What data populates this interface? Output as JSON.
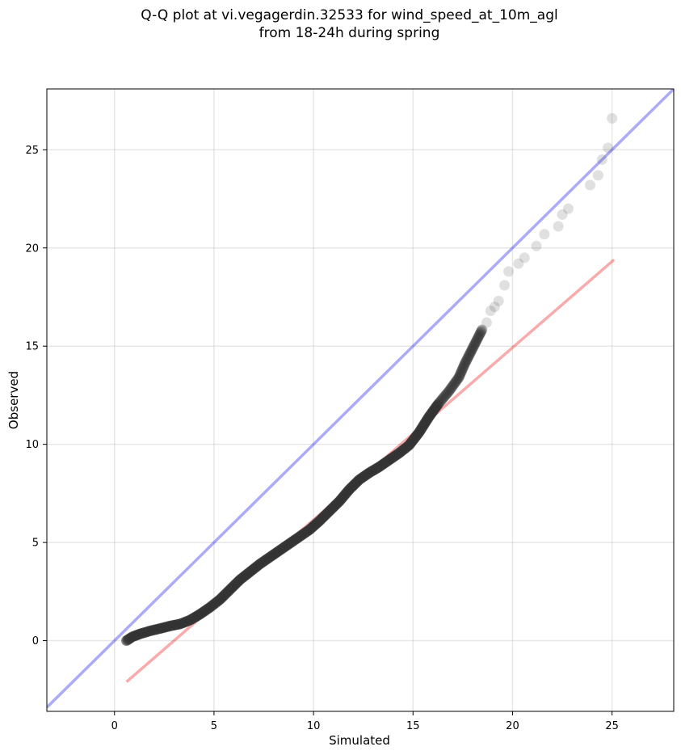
{
  "chart_data": {
    "type": "scatter",
    "title_line1": "Q-Q plot at vi.vegagerdin.32533 for wind_speed_at_10m_agl",
    "title_line2": "from 18-24h during spring",
    "xlabel": "Simulated",
    "ylabel": "Observed",
    "xlim": [
      -3.4,
      28.1
    ],
    "ylim": [
      -3.6,
      28.1
    ],
    "xticks": [
      0,
      5,
      10,
      15,
      20,
      25
    ],
    "yticks": [
      0,
      5,
      10,
      15,
      20,
      25
    ],
    "grid": true,
    "identity_line": {
      "color": "#0000ee",
      "opacity": 0.33,
      "from": [
        -3.4,
        -3.4
      ],
      "to": [
        28.1,
        28.1
      ]
    },
    "fit_line": {
      "color": "#ee0000",
      "opacity": 0.33,
      "from": [
        0.6,
        -2.1
      ],
      "to": [
        25.1,
        19.4
      ]
    },
    "dense_curve": {
      "x": [
        0.6,
        0.9,
        1.3,
        1.8,
        2.3,
        2.8,
        3.3,
        3.8,
        4.3,
        4.8,
        5.3,
        5.8,
        6.3,
        6.8,
        7.3,
        7.8,
        8.3,
        8.8,
        9.3,
        9.8,
        10.3,
        10.8,
        11.3,
        11.8,
        12.3,
        12.8,
        13.3,
        13.8,
        14.3,
        14.8,
        15.3,
        15.8,
        16.3,
        16.8,
        17.3,
        17.6,
        17.9,
        18.2,
        18.5
      ],
      "y": [
        0.0,
        0.2,
        0.35,
        0.5,
        0.62,
        0.75,
        0.85,
        1.05,
        1.35,
        1.7,
        2.1,
        2.6,
        3.1,
        3.5,
        3.9,
        4.25,
        4.6,
        4.95,
        5.3,
        5.65,
        6.1,
        6.6,
        7.1,
        7.7,
        8.2,
        8.55,
        8.85,
        9.2,
        9.55,
        9.95,
        10.6,
        11.4,
        12.1,
        12.7,
        13.4,
        14.1,
        14.7,
        15.3,
        15.9
      ]
    },
    "sparse_points": {
      "x": [
        18.7,
        18.9,
        19.1,
        19.3,
        19.6,
        19.8,
        20.3,
        20.6,
        21.2,
        21.6,
        22.3,
        22.5,
        22.8,
        23.9,
        24.3,
        24.5,
        24.8,
        25.0
      ],
      "y": [
        16.2,
        16.8,
        17.0,
        17.3,
        18.1,
        18.8,
        19.2,
        19.5,
        20.1,
        20.7,
        21.1,
        21.7,
        22.0,
        23.2,
        23.7,
        24.5,
        25.1,
        26.6
      ]
    }
  }
}
